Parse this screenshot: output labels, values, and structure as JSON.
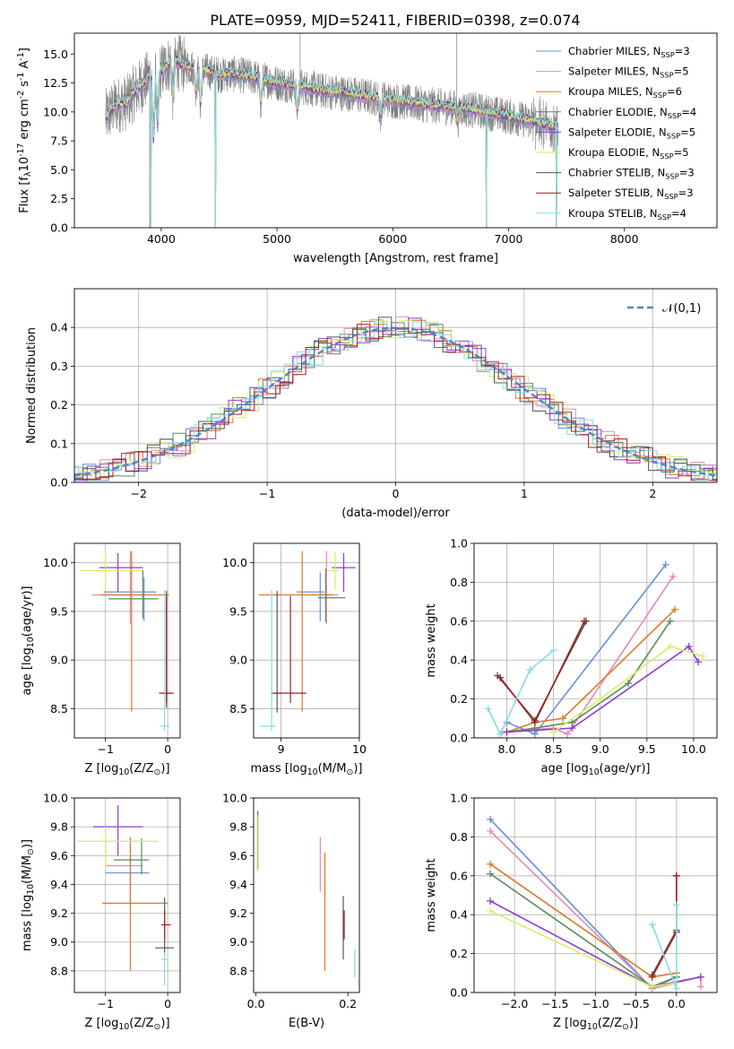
{
  "title": "PLATE=0959, MJD=52411, FIBERID=0398, z=0.074",
  "colors": [
    "#6a8fd8",
    "#e589b7",
    "#d87a2a",
    "#5b8a5b",
    "#8e3ccb",
    "#d6ee6a",
    "#555555",
    "#a81c1c",
    "#88dbe3"
  ],
  "chart_data": [
    {
      "id": "spectrum",
      "type": "line",
      "xlabel": "wavelength [Angstrom, rest frame]",
      "ylabel": "Flux [f$_\\lambda$10$^{-17}$ erg cm$^{-2}$ s$^{-1}$ A$^{-1}$]",
      "xlim": [
        3250,
        8800
      ],
      "ylim": [
        0,
        16.8
      ],
      "xticks": [
        4000,
        5000,
        6000,
        7000,
        8000
      ],
      "yticks": [
        0.0,
        2.5,
        5.0,
        7.5,
        10.0,
        12.5,
        15.0
      ],
      "ytick_labels": [
        "0.0",
        "2.5",
        "5.0",
        "7.5",
        "10.0",
        "12.5",
        "15.0"
      ],
      "legend_placement": "top-right",
      "data": {
        "x": [
          3520,
          3600,
          3700,
          3800,
          3900,
          3950,
          4000,
          4100,
          4200,
          4300,
          4400,
          4500,
          4600,
          4800,
          5000,
          5200,
          5400,
          5600,
          5800,
          6000,
          6200,
          6400,
          6600,
          6800,
          7000,
          7200,
          7430
        ],
        "y": [
          9.5,
          10.5,
          10.8,
          12.0,
          13.0,
          14.0,
          13.5,
          14.5,
          14.0,
          13.8,
          13.5,
          13.2,
          13.3,
          13.0,
          12.5,
          12.2,
          11.8,
          11.6,
          11.3,
          11.0,
          10.7,
          10.5,
          10.3,
          10.0,
          9.6,
          9.2,
          8.6
        ]
      },
      "series": [
        {
          "name": "Chabrier MILES, N$_{SSP}$=3"
        },
        {
          "name": "Salpeter MILES, N$_{SSP}$=5"
        },
        {
          "name": "Kroupa MILES, N$_{SSP}$=6"
        },
        {
          "name": "Chabrier ELODIE, N$_{SSP}$=4"
        },
        {
          "name": "Salpeter ELODIE, N$_{SSP}$=5"
        },
        {
          "name": "Kroupa ELODIE, N$_{SSP}$=5"
        },
        {
          "name": "Chabrier STELIB, N$_{SSP}$=3"
        },
        {
          "name": "Salpeter STELIB, N$_{SSP}$=3"
        },
        {
          "name": "Kroupa STELIB, N$_{SSP}$=4"
        }
      ]
    },
    {
      "id": "residuals",
      "type": "line",
      "xlabel": "(data-model)/error",
      "ylabel": "Normed distribution",
      "xlim": [
        -2.5,
        2.5
      ],
      "ylim": [
        0,
        0.5
      ],
      "xticks": [
        -2,
        -1,
        0,
        1,
        2
      ],
      "xtick_labels": [
        "−2",
        "−1",
        "0",
        "1",
        "2"
      ],
      "yticks": [
        0.0,
        0.1,
        0.2,
        0.3,
        0.4
      ],
      "ytick_labels": [
        "0.0",
        "0.1",
        "0.2",
        "0.3",
        "0.4"
      ],
      "legend": [
        "$\\mathcal{N}(0,1)$"
      ],
      "legend_placement": "top-right",
      "bin_width": 0.1,
      "grid": true
    },
    {
      "id": "age_Z",
      "type": "scatter",
      "xlabel": "Z [log$_{10}$(Z/Z$_\\odot$)]",
      "ylabel": "age  [log$_{10}$(age/yr)]",
      "xlim": [
        -1.5,
        0.2
      ],
      "ylim": [
        8.2,
        10.2
      ],
      "xticks": [
        -1,
        0
      ],
      "xtick_labels": [
        "−1",
        "0"
      ],
      "yticks": [
        8.5,
        9.0,
        9.5,
        10.0
      ],
      "ytick_labels": [
        "8.5",
        "9.0",
        "9.5",
        "10.0"
      ],
      "grid": true,
      "points": [
        {
          "x": -0.38,
          "y": 9.7,
          "xerr": [
            0.65,
            0.2
          ],
          "yerr": [
            0.3,
            0.15
          ],
          "c": 0
        },
        {
          "x": -0.6,
          "y": 9.67,
          "xerr": [
            0.62,
            0.2
          ],
          "yerr": [
            0.3,
            0.45
          ],
          "c": 1
        },
        {
          "x": -0.58,
          "y": 9.67,
          "xerr": [
            0.5,
            0.6
          ],
          "yerr": [
            1.2,
            0.45
          ],
          "c": 2
        },
        {
          "x": -0.4,
          "y": 9.63,
          "xerr": [
            0.55,
            0.25
          ],
          "yerr": [
            0.2,
            0.3
          ],
          "c": 3
        },
        {
          "x": -0.8,
          "y": 9.95,
          "xerr": [
            0.3,
            0.4
          ],
          "yerr": [
            0.25,
            0.15
          ],
          "c": 4
        },
        {
          "x": -1.0,
          "y": 9.92,
          "xerr": [
            0.4,
            0.6
          ],
          "yerr": [
            0.2,
            0.2
          ],
          "c": 5
        },
        {
          "x": -0.02,
          "y": 8.66,
          "xerr": [
            0.08,
            0.08
          ],
          "yerr": [
            0.15,
            1.05
          ],
          "c": 6
        },
        {
          "x": -0.02,
          "y": 8.66,
          "xerr": [
            0.12,
            0.12
          ],
          "yerr": [
            0.1,
            1.0
          ],
          "c": 7
        },
        {
          "x": -0.05,
          "y": 8.32,
          "xerr": [
            0.08,
            0.08
          ],
          "yerr": [
            0.05,
            1.4
          ],
          "c": 8
        }
      ]
    },
    {
      "id": "age_mass",
      "type": "scatter",
      "xlabel": "mass [log$_{10}$(M/M$_\\odot$)]",
      "ylabel": "",
      "xlim": [
        8.65,
        10.0
      ],
      "ylim": [
        8.2,
        10.2
      ],
      "xticks": [
        9,
        10
      ],
      "xtick_labels": [
        "9",
        "10"
      ],
      "yticks": [
        8.5,
        9.0,
        9.5,
        10.0
      ],
      "ytick_labels": [
        "8.5",
        "9.0",
        "9.5",
        "10.0"
      ],
      "grid": true,
      "points": [
        {
          "x": 9.5,
          "y": 9.7,
          "xerr": [
            0.3,
            0.05
          ],
          "yerr": [
            0.3,
            0.2
          ],
          "c": 0
        },
        {
          "x": 9.58,
          "y": 9.67,
          "xerr": [
            0.2,
            0.15
          ],
          "yerr": [
            0.3,
            0.45
          ],
          "c": 1
        },
        {
          "x": 9.27,
          "y": 9.67,
          "xerr": [
            0.55,
            0.4
          ],
          "yerr": [
            1.2,
            0.45
          ],
          "c": 2
        },
        {
          "x": 9.57,
          "y": 9.64,
          "xerr": [
            0.1,
            0.25
          ],
          "yerr": [
            0.25,
            0.3
          ],
          "c": 3
        },
        {
          "x": 9.8,
          "y": 9.95,
          "xerr": [
            0.15,
            0.15
          ],
          "yerr": [
            0.25,
            0.15
          ],
          "c": 4
        },
        {
          "x": 9.69,
          "y": 9.92,
          "xerr": [
            0.1,
            0.05
          ],
          "yerr": [
            0.2,
            0.2
          ],
          "c": 5
        },
        {
          "x": 8.95,
          "y": 8.66,
          "xerr": [
            0.02,
            0.05
          ],
          "yerr": [
            0.2,
            1.05
          ],
          "c": 6
        },
        {
          "x": 9.12,
          "y": 8.66,
          "xerr": [
            0.25,
            0.2
          ],
          "yerr": [
            0.1,
            1.0
          ],
          "c": 7
        },
        {
          "x": 8.88,
          "y": 8.32,
          "xerr": [
            0.15,
            0.05
          ],
          "yerr": [
            0.05,
            1.4
          ],
          "c": 8
        }
      ]
    },
    {
      "id": "weight_age",
      "type": "line",
      "xlabel": "age  [log$_{10}$(age/yr)]",
      "ylabel": "mass weight",
      "xlim": [
        7.65,
        10.25
      ],
      "ylim": [
        0,
        1
      ],
      "xticks": [
        8.0,
        8.5,
        9.0,
        9.5,
        10.0
      ],
      "xtick_labels": [
        "8.0",
        "8.5",
        "9.0",
        "9.5",
        "10.0"
      ],
      "yticks": [
        0.0,
        0.2,
        0.4,
        0.6,
        0.8,
        1.0
      ],
      "ytick_labels": [
        "0.0",
        "0.2",
        "0.4",
        "0.6",
        "0.8",
        "1.0"
      ],
      "grid": true,
      "series": [
        {
          "c": 0,
          "x": [
            8.0,
            8.3,
            9.7
          ],
          "y": [
            0.08,
            0.02,
            0.89
          ]
        },
        {
          "c": 1,
          "x": [
            7.95,
            8.5,
            8.65,
            9.78
          ],
          "y": [
            0.03,
            0.05,
            0.02,
            0.83
          ]
        },
        {
          "c": 2,
          "x": [
            8.0,
            8.3,
            8.6,
            9.8
          ],
          "y": [
            0.03,
            0.08,
            0.1,
            0.66
          ]
        },
        {
          "c": 3,
          "x": [
            8.0,
            8.3,
            8.7,
            9.3,
            9.75
          ],
          "y": [
            0.03,
            0.05,
            0.08,
            0.28,
            0.6
          ]
        },
        {
          "c": 4,
          "x": [
            8.0,
            8.7,
            9.95,
            10.05
          ],
          "y": [
            0.03,
            0.05,
            0.47,
            0.39
          ]
        },
        {
          "c": 5,
          "x": [
            8.5,
            9.0,
            9.75,
            10.1
          ],
          "y": [
            0.03,
            0.2,
            0.47,
            0.42
          ]
        },
        {
          "c": 6,
          "x": [
            7.9,
            8.3,
            8.85
          ],
          "y": [
            0.32,
            0.09,
            0.6
          ]
        },
        {
          "c": 7,
          "x": [
            7.93,
            8.3,
            8.83
          ],
          "y": [
            0.31,
            0.08,
            0.6
          ]
        },
        {
          "c": 8,
          "x": [
            7.8,
            7.93,
            8.25,
            8.5
          ],
          "y": [
            0.15,
            0.02,
            0.35,
            0.45
          ]
        }
      ]
    },
    {
      "id": "mass_Z",
      "type": "scatter",
      "xlabel": "Z [log$_{10}$(Z/Z$_\\odot$)]",
      "ylabel": "mass [log$_{10}$(M/M$_\\odot$)]",
      "xlim": [
        -1.5,
        0.2
      ],
      "ylim": [
        8.65,
        10.0
      ],
      "xticks": [
        -1,
        0
      ],
      "xtick_labels": [
        "−1",
        "0"
      ],
      "yticks": [
        8.8,
        9.0,
        9.2,
        9.4,
        9.6,
        9.8,
        10.0
      ],
      "ytick_labels": [
        "8.8",
        "9.0",
        "9.2",
        "9.4",
        "9.6",
        "9.8",
        "10.0"
      ],
      "grid": true,
      "points": [
        {
          "x": -0.6,
          "y": 9.48,
          "xerr": [
            0.4,
            0.3
          ],
          "yerr": [
            0.25,
            0.1
          ],
          "c": 0
        },
        {
          "x": -0.6,
          "y": 9.53,
          "xerr": [
            0.4,
            0.2
          ],
          "yerr": [
            0.2,
            0.2
          ],
          "c": 1
        },
        {
          "x": -0.6,
          "y": 9.27,
          "xerr": [
            0.45,
            0.6
          ],
          "yerr": [
            0.47,
            0.45
          ],
          "c": 2
        },
        {
          "x": -0.42,
          "y": 9.57,
          "xerr": [
            0.45,
            0.12
          ],
          "yerr": [
            0.1,
            0.15
          ],
          "c": 3
        },
        {
          "x": -0.8,
          "y": 9.8,
          "xerr": [
            0.4,
            0.4
          ],
          "yerr": [
            0.2,
            0.15
          ],
          "c": 4
        },
        {
          "x": -1.0,
          "y": 9.7,
          "xerr": [
            0.45,
            0.85
          ],
          "yerr": [
            0.2,
            0.1
          ],
          "c": 5
        },
        {
          "x": -0.05,
          "y": 8.96,
          "xerr": [
            0.15,
            0.15
          ],
          "yerr": [
            0.05,
            0.35
          ],
          "c": 6
        },
        {
          "x": -0.05,
          "y": 9.12,
          "xerr": [
            0.05,
            0.1
          ],
          "yerr": [
            0.1,
            0.1
          ],
          "c": 7
        },
        {
          "x": -0.05,
          "y": 8.88,
          "xerr": [
            0.05,
            0.05
          ],
          "yerr": [
            0.18,
            0.05
          ],
          "c": 8
        }
      ]
    },
    {
      "id": "mass_EBV",
      "type": "scatter",
      "xlabel": "E(B-V)",
      "ylabel": "",
      "xlim": [
        -0.005,
        0.225
      ],
      "ylim": [
        8.65,
        10.0
      ],
      "xticks": [
        0.0,
        0.2
      ],
      "xtick_labels": [
        "0.0",
        "0.2"
      ],
      "yticks": [
        8.8,
        9.0,
        9.2,
        9.4,
        9.6,
        9.8,
        10.0
      ],
      "ytick_labels": [
        "8.8",
        "9.0",
        "9.2",
        "9.4",
        "9.6",
        "9.8",
        "10.0"
      ],
      "grid": false,
      "points": [
        {
          "x": 0.004,
          "y": 9.71,
          "xerr": [
            0,
            0
          ],
          "yerr": [
            0.2,
            0.2
          ],
          "c": 4
        },
        {
          "x": 0.003,
          "y": 9.7,
          "xerr": [
            0,
            0
          ],
          "yerr": [
            0.21,
            0.18
          ],
          "c": 5
        },
        {
          "x": 0.14,
          "y": 9.53,
          "xerr": [
            0,
            0
          ],
          "yerr": [
            0.18,
            0.2
          ],
          "c": 1
        },
        {
          "x": 0.15,
          "y": 9.2,
          "xerr": [
            0,
            0
          ],
          "yerr": [
            0.4,
            0.42
          ],
          "c": 2
        },
        {
          "x": 0.19,
          "y": 9.1,
          "xerr": [
            0,
            0
          ],
          "yerr": [
            0.22,
            0.22
          ],
          "c": 6
        },
        {
          "x": 0.192,
          "y": 9.12,
          "xerr": [
            0,
            0
          ],
          "yerr": [
            0.1,
            0.1
          ],
          "c": 7
        },
        {
          "x": 0.215,
          "y": 8.85,
          "xerr": [
            0,
            0
          ],
          "yerr": [
            0.1,
            0.1
          ],
          "c": 8
        }
      ]
    },
    {
      "id": "weight_Z",
      "type": "line",
      "xlabel": "Z [log$_{10}$(Z/Z$_\\odot$)]",
      "ylabel": "mass weight",
      "xlim": [
        -2.5,
        0.5
      ],
      "ylim": [
        0,
        1
      ],
      "xticks": [
        -2.0,
        -1.5,
        -1.0,
        -0.5,
        0.0
      ],
      "xtick_labels": [
        "−2.0",
        "−1.5",
        "−1.0",
        "−0.5",
        "0.0"
      ],
      "yticks": [
        0.0,
        0.2,
        0.4,
        0.6,
        0.8,
        1.0
      ],
      "ytick_labels": [
        "0.0",
        "0.2",
        "0.4",
        "0.6",
        "0.8",
        "1.0"
      ],
      "grid": true,
      "series": [
        {
          "c": 0,
          "x": [
            -2.3,
            -0.3,
            0.0
          ],
          "y": [
            0.89,
            0.02,
            0.08
          ]
        },
        {
          "c": 1,
          "x": [
            -2.3,
            -0.3,
            0.3,
            0.3
          ],
          "y": [
            0.83,
            0.02,
            0.08,
            0.03
          ]
        },
        {
          "c": 2,
          "x": [
            -2.3,
            -0.3,
            0.0
          ],
          "y": [
            0.66,
            0.08,
            0.1
          ]
        },
        {
          "c": 3,
          "x": [
            -2.3,
            -0.3,
            0.0
          ],
          "y": [
            0.61,
            0.03,
            0.08
          ]
        },
        {
          "c": 4,
          "x": [
            -2.3,
            -0.3,
            0.3
          ],
          "y": [
            0.47,
            0.03,
            0.08
          ]
        },
        {
          "c": 5,
          "x": [
            -2.3,
            -0.3,
            0.0
          ],
          "y": [
            0.42,
            0.03,
            0.05
          ]
        },
        {
          "c": 6,
          "x": [
            -0.3,
            0.0,
            0.0
          ],
          "y": [
            0.09,
            0.32,
            0.6
          ]
        },
        {
          "c": 7,
          "x": [
            -0.3,
            0.0,
            0.0
          ],
          "y": [
            0.08,
            0.31,
            0.6
          ]
        },
        {
          "c": 8,
          "x": [
            -0.3,
            0.0,
            0.0
          ],
          "y": [
            0.35,
            0.02,
            0.45
          ]
        }
      ]
    }
  ]
}
